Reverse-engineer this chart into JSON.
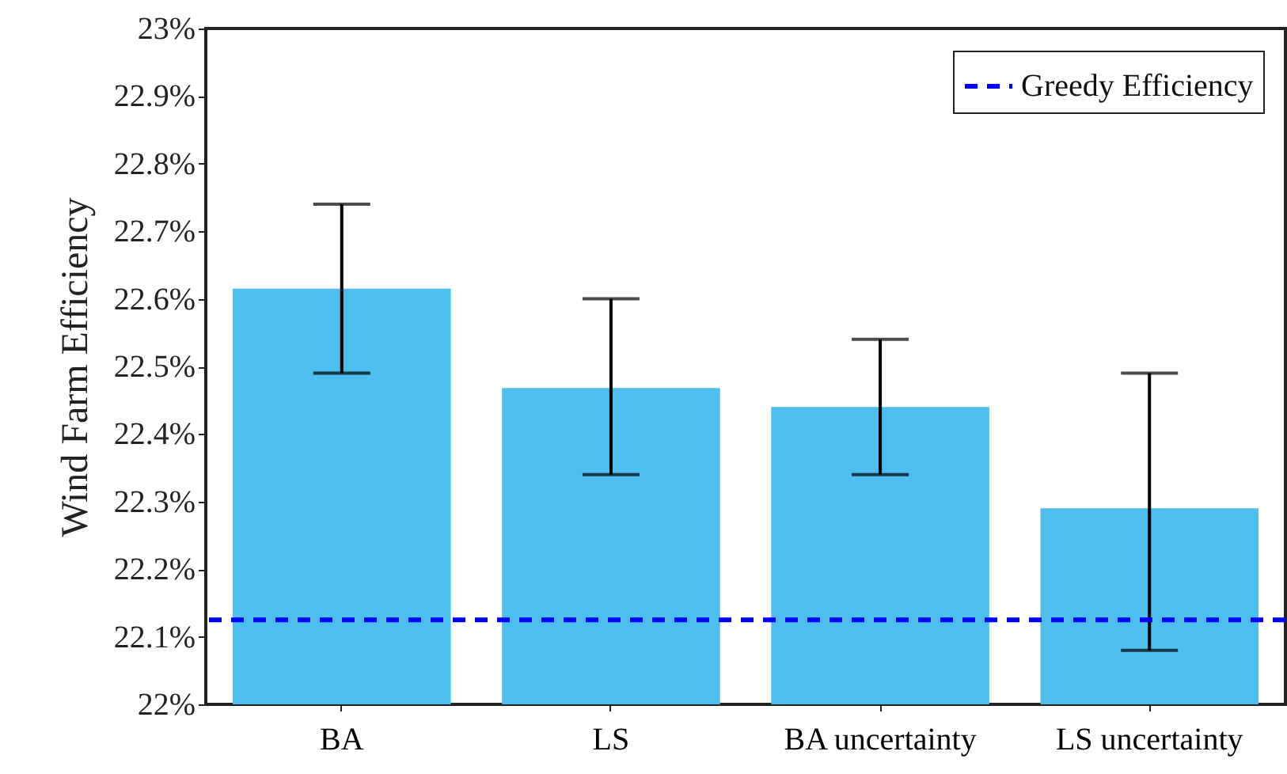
{
  "chart_data": {
    "type": "bar",
    "ylabel": "Wind Farm Efficiency",
    "categories": [
      "BA",
      "LS",
      "BA uncertainty",
      "LS uncertainty"
    ],
    "series": [
      {
        "color": "#4dbeee",
        "values": [
          22.615,
          22.468,
          22.44,
          22.29
        ],
        "errors": [
          [
            22.49,
            22.74
          ],
          [
            22.34,
            22.6
          ],
          [
            22.34,
            22.54
          ],
          [
            22.08,
            22.49
          ]
        ]
      }
    ],
    "ylim": [
      22,
      23
    ],
    "yticks": [
      {
        "value": 22,
        "label": "22%"
      },
      {
        "value": 22.1,
        "label": "22.1%"
      },
      {
        "value": 22.2,
        "label": "22.2%"
      },
      {
        "value": 22.3,
        "label": "22.3%"
      },
      {
        "value": 22.4,
        "label": "22.4%"
      },
      {
        "value": 22.5,
        "label": "22.5%"
      },
      {
        "value": 22.6,
        "label": "22.6%"
      },
      {
        "value": 22.7,
        "label": "22.7%"
      },
      {
        "value": 22.8,
        "label": "22.8%"
      },
      {
        "value": 22.9,
        "label": "22.9%"
      },
      {
        "value": 23,
        "label": "23%"
      }
    ],
    "ref_lines": [
      {
        "axis": "y",
        "value": 22.125,
        "label": "Greedy Efficiency",
        "color": "#0000ff",
        "line_style": "dashed"
      }
    ],
    "legend": "top right",
    "grid": false
  }
}
